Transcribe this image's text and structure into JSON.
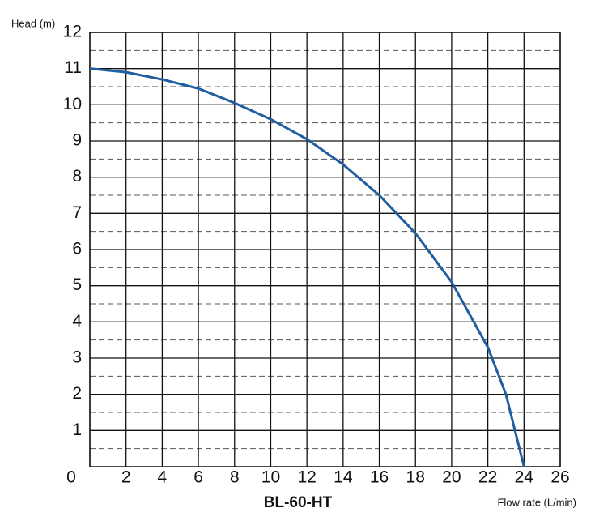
{
  "chart_data": {
    "type": "line",
    "title": "BL-60-HT",
    "x_label": "Flow rate (L/min)",
    "y_label": "Head (m)",
    "x": [
      0,
      2,
      4,
      6,
      8,
      10,
      12,
      14,
      16,
      18,
      20,
      22,
      23,
      24
    ],
    "values": [
      11,
      10.9,
      10.7,
      10.45,
      10.05,
      9.6,
      9.05,
      8.35,
      7.5,
      6.45,
      5.1,
      3.3,
      2.0,
      0
    ],
    "color": "#1f5fa0",
    "xlim": [
      0,
      26
    ],
    "xticks": [
      0,
      2,
      4,
      6,
      8,
      10,
      12,
      14,
      16,
      18,
      20,
      22,
      24,
      26
    ],
    "ylim": [
      0,
      12
    ],
    "yticks": [
      1,
      2,
      3,
      4,
      5,
      6,
      7,
      8,
      9,
      10,
      11,
      12
    ],
    "grid": true
  }
}
